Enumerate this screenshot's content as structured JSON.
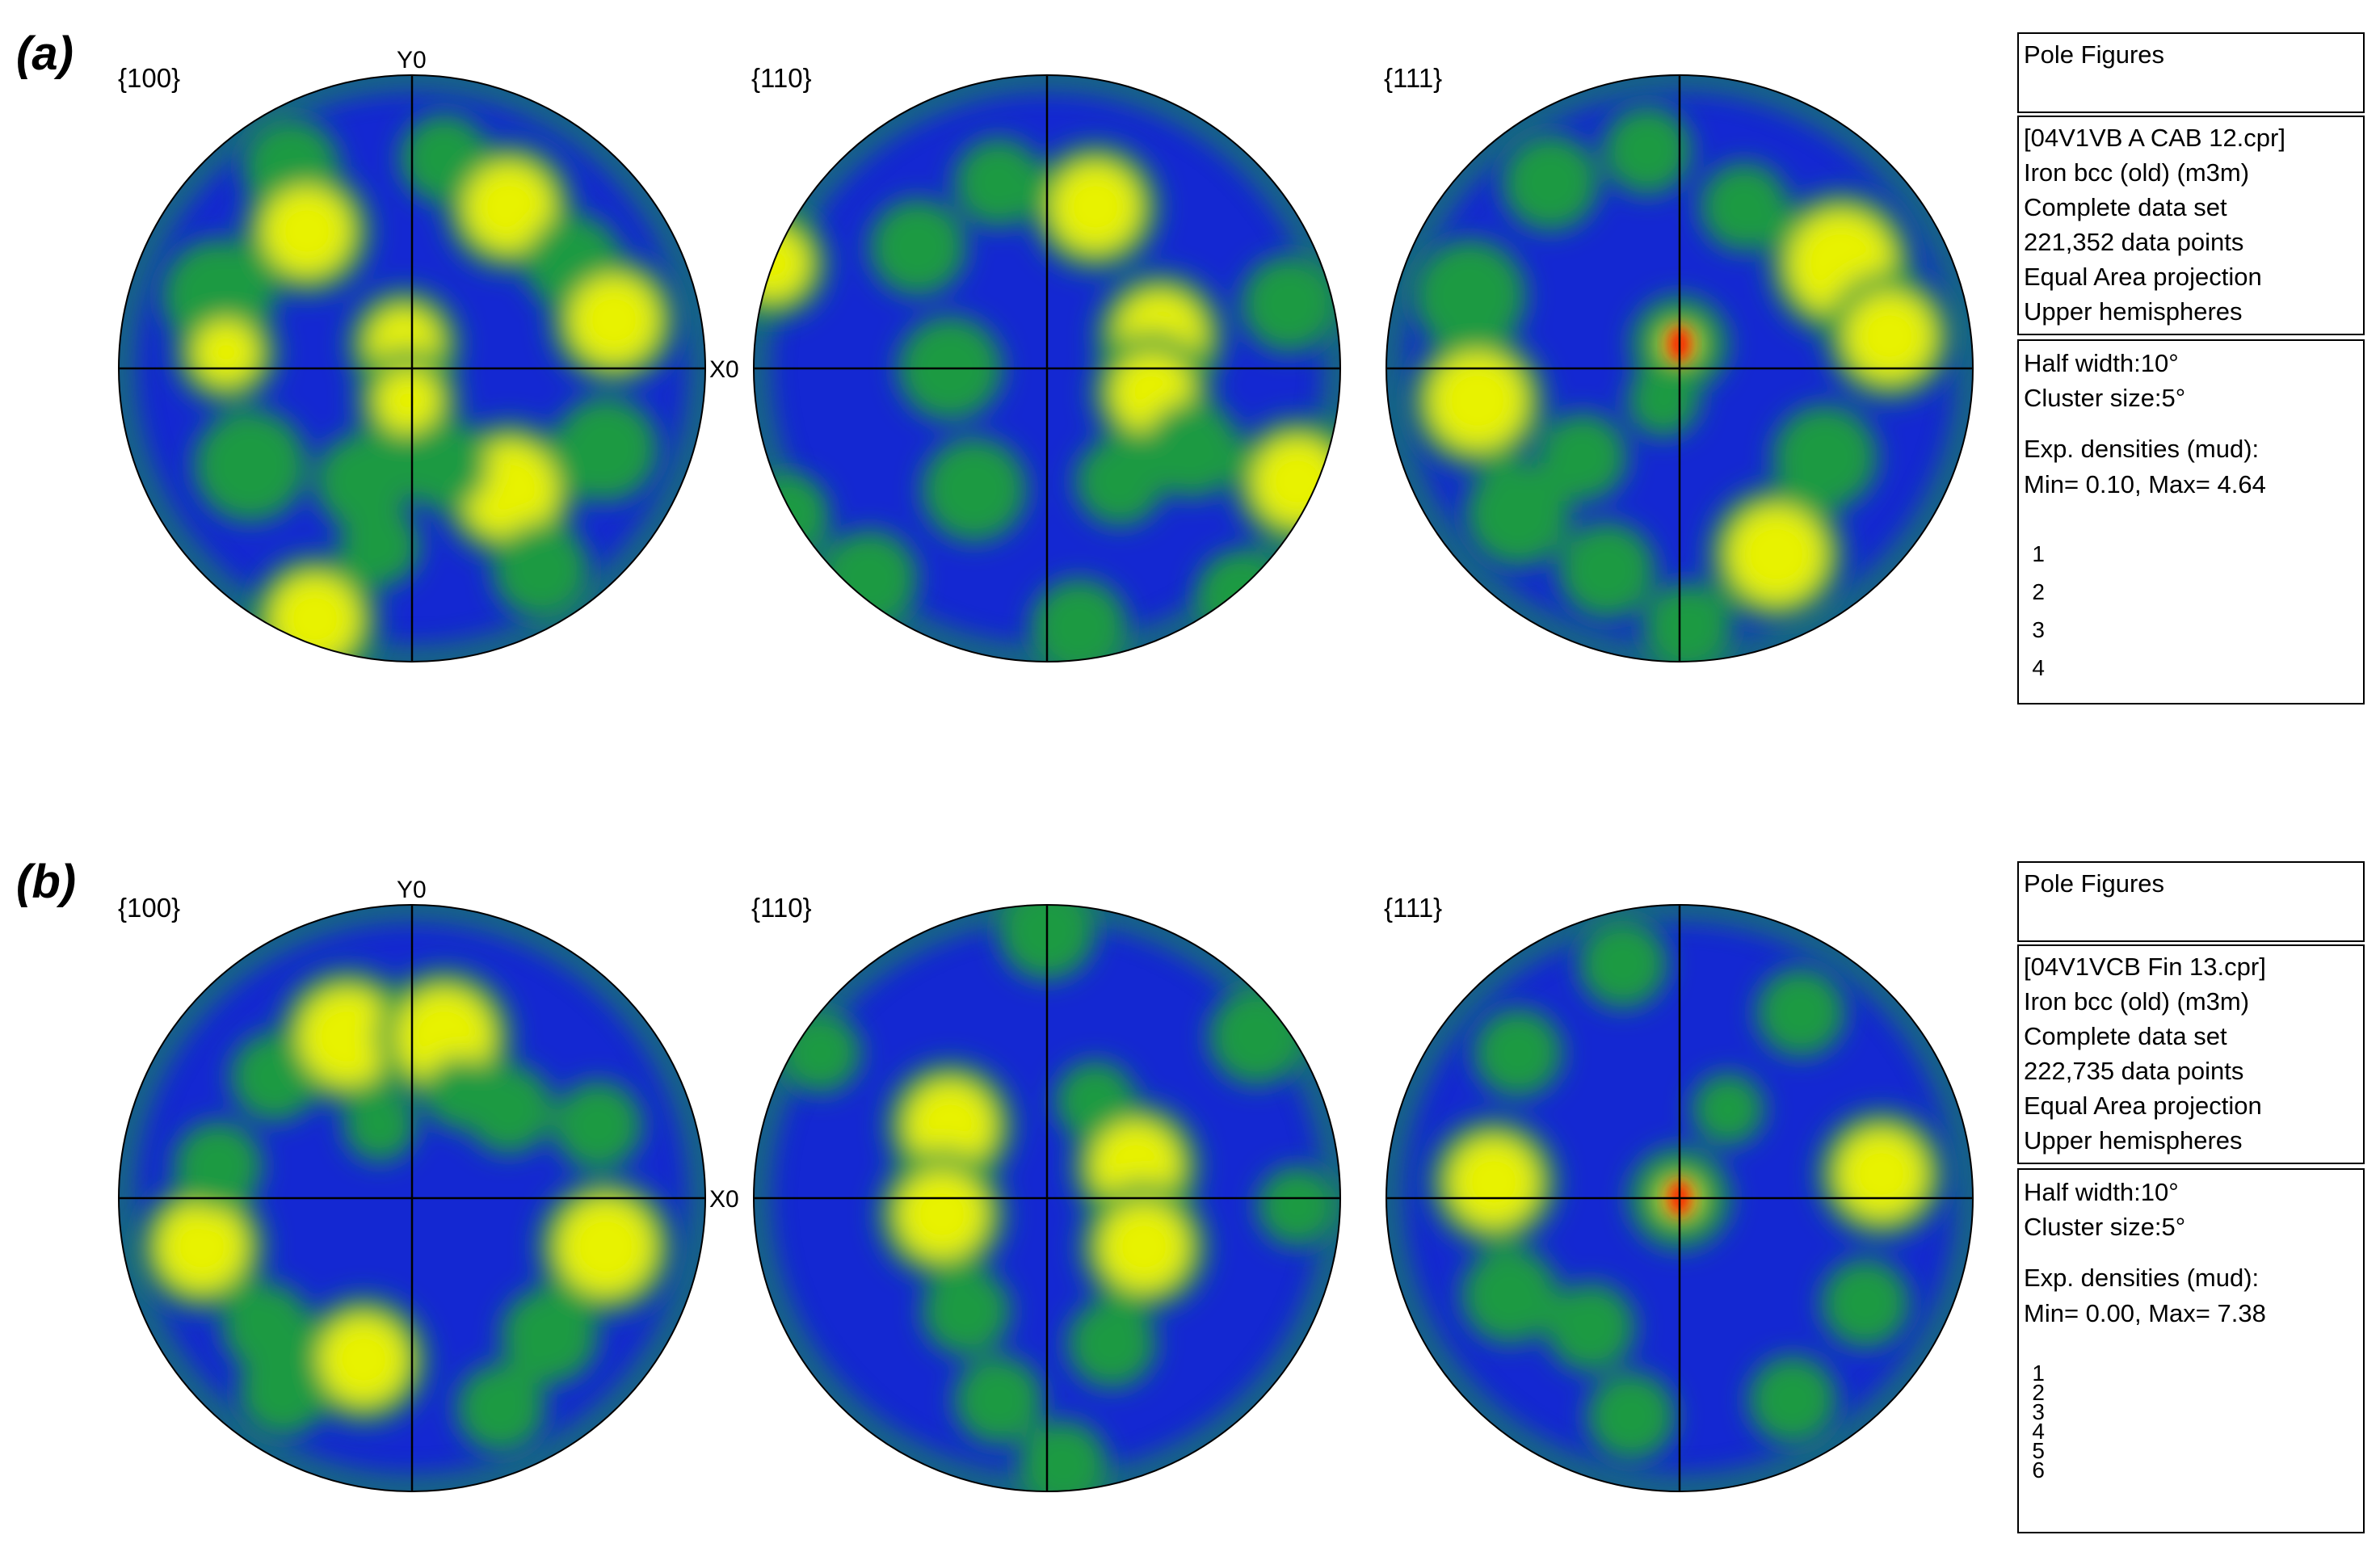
{
  "colors": {
    "low": "#1428d2",
    "mid": "#1a9a42",
    "high": "#e8f200",
    "peak": "#ff1a00"
  },
  "panels": [
    {
      "id": "a",
      "label": "(a)",
      "figures": [
        {
          "label": "{100}",
          "y_axis": "Y0",
          "x_axis": ""
        },
        {
          "label": "{110}",
          "y_axis": "",
          "x_axis": "X0"
        },
        {
          "label": "{111}",
          "y_axis": "",
          "x_axis": ""
        }
      ],
      "info_title": "Pole Figures",
      "info_lines": [
        "[04V1VB A CAB 12.cpr]",
        "Iron bcc (old) (m3m)",
        "Complete data set",
        "221,352 data points",
        "Equal Area projection",
        "Upper hemispheres"
      ],
      "settings_lines": [
        "Half width:10°",
        "Cluster size:5°"
      ],
      "density_lines": [
        "Exp. densities (mud):",
        "Min= 0.10, Max= 4.64"
      ],
      "legend_labels": [
        "1",
        "2",
        "3",
        "4"
      ]
    },
    {
      "id": "b",
      "label": "(b)",
      "figures": [
        {
          "label": "{100}",
          "y_axis": "Y0",
          "x_axis": ""
        },
        {
          "label": "{110}",
          "y_axis": "",
          "x_axis": "X0"
        },
        {
          "label": "{111}",
          "y_axis": "",
          "x_axis": ""
        }
      ],
      "info_title": "Pole Figures",
      "info_lines": [
        "[04V1VCB Fin 13.cpr]",
        "Iron bcc (old) (m3m)",
        "Complete data set",
        "222,735 data points",
        "Equal Area projection",
        "Upper hemispheres"
      ],
      "settings_lines": [
        "Half width:10°",
        "Cluster size:5°"
      ],
      "density_lines": [
        "Exp. densities (mud):",
        "Min= 0.00, Max= 7.38"
      ],
      "legend_labels": [
        "1",
        "2",
        "3",
        "4",
        "5",
        "6"
      ]
    }
  ]
}
